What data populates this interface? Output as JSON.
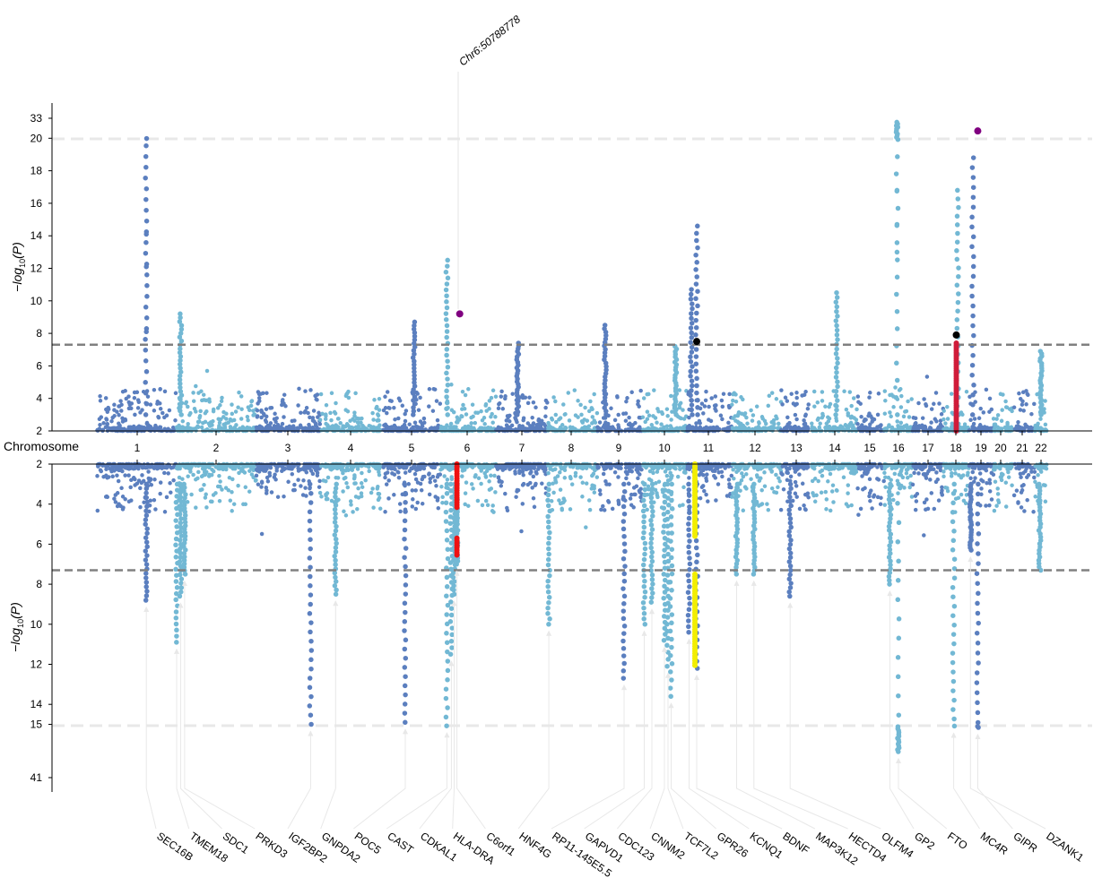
{
  "chart_data": {
    "type": "scatter",
    "subtype": "miami-plot",
    "xlabel": "Chromosome",
    "chromosomes": [
      "1",
      "2",
      "3",
      "4",
      "5",
      "6",
      "7",
      "8",
      "9",
      "10",
      "11",
      "12",
      "13",
      "14",
      "15",
      "16",
      "17",
      "18",
      "19",
      "20",
      "21",
      "22"
    ],
    "colors": {
      "dark": "#5b7fbf",
      "light": "#72b8d4",
      "threshold": "#808080",
      "break": "#e8e8e8"
    },
    "significance_threshold": 7.3,
    "top": {
      "ylabel": "-log10(P)",
      "tick_labels": [
        "2",
        "4",
        "6",
        "8",
        "10",
        "12",
        "14",
        "16",
        "18",
        "20",
        "33"
      ],
      "axis_break": {
        "label_below": "20",
        "label_above": "33"
      },
      "annotation": "Chr6:50788778",
      "peaks": [
        {
          "chr": "1",
          "pos": 0.62,
          "max": 20.2,
          "extra": [
            14.1,
            12.1,
            8.1
          ]
        },
        {
          "chr": "2",
          "pos": 0.05,
          "max": 9.2
        },
        {
          "chr": "5",
          "pos": 0.55,
          "max": 8.7
        },
        {
          "chr": "6",
          "pos": 0.12,
          "max": 12.5
        },
        {
          "chr": "7",
          "pos": 0.42,
          "max": 7.4
        },
        {
          "chr": "9",
          "pos": 0.18,
          "max": 8.5
        },
        {
          "chr": "10",
          "pos": 0.75,
          "max": 7.2
        },
        {
          "chr": "11",
          "pos": 0.1,
          "max": 10.7
        },
        {
          "chr": "11",
          "pos": 0.22,
          "max": 14.6
        },
        {
          "chr": "14",
          "pos": 0.55,
          "max": 10.5
        },
        {
          "chr": "16",
          "pos": 0.45,
          "max": 30.5,
          "extra": [
            16.8,
            14.7,
            13.0
          ]
        },
        {
          "chr": "18",
          "pos": 0.55,
          "max": 16.8
        },
        {
          "chr": "19",
          "pos": 0.15,
          "max": 18.8
        },
        {
          "chr": "22",
          "pos": 0.5,
          "max": 6.9
        }
      ],
      "highlights": [
        {
          "chr": "6",
          "pos": 0.35,
          "p": 9.2,
          "color": "#800080"
        },
        {
          "chr": "11",
          "pos": 0.22,
          "p": 7.5,
          "color": "#000000"
        },
        {
          "chr": "18",
          "pos": 0.5,
          "p": 7.9,
          "color": "#000000"
        },
        {
          "chr": "19",
          "pos": 0.35,
          "p": 25.0,
          "color": "#800080"
        }
      ],
      "highlight_columns": [
        {
          "chr": "18",
          "pos": 0.5,
          "from": 2,
          "to": 7.4,
          "color": "#d01c3a"
        }
      ]
    },
    "bottom": {
      "ylabel": "-log10(P)",
      "tick_labels": [
        "2",
        "4",
        "6",
        "8",
        "10",
        "12",
        "14",
        "15",
        "41"
      ],
      "axis_break": {
        "label_below": "15",
        "label_above": "41"
      },
      "peaks": [
        {
          "chr": "1",
          "pos": 0.62,
          "max": 8.8,
          "gene": "SEC16B"
        },
        {
          "chr": "2",
          "pos": 0.0,
          "max": 10.9,
          "gene": "TMEM18"
        },
        {
          "chr": "2",
          "pos": 0.05,
          "max": 8.6,
          "gene": "SDC1"
        },
        {
          "chr": "2",
          "pos": 0.1,
          "max": 7.5,
          "gene": "PRKD3"
        },
        {
          "chr": "3",
          "pos": 0.85,
          "max": 15.0,
          "gene": "IGF2BP2"
        },
        {
          "chr": "4",
          "pos": 0.25,
          "max": 8.5,
          "gene": "GNPDA2"
        },
        {
          "chr": "5",
          "pos": 0.4,
          "max": 14.9,
          "gene": "POC5"
        },
        {
          "chr": "6",
          "pos": 0.12,
          "max": 15.1,
          "gene": "CAST"
        },
        {
          "chr": "6",
          "pos": 0.2,
          "max": 11.5,
          "gene": "CDKAL1"
        },
        {
          "chr": "6",
          "pos": 0.25,
          "max": 8.5,
          "gene": "HLA-DRA"
        },
        {
          "chr": "6",
          "pos": 0.3,
          "max": 7.0,
          "gene": "C6orf1"
        },
        {
          "chr": "8",
          "pos": 0.02,
          "max": 10.0,
          "gene": "HNF4G"
        },
        {
          "chr": "9",
          "pos": 0.6,
          "max": 12.7,
          "gene": "RP11-145E5.5"
        },
        {
          "chr": "10",
          "pos": 0.05,
          "max": 10.0,
          "gene": "GAPVD1"
        },
        {
          "chr": "10",
          "pos": 0.22,
          "max": 8.9,
          "gene": "CDC123"
        },
        {
          "chr": "10",
          "pos": 0.5,
          "max": 10.8,
          "gene": "CNNM2"
        },
        {
          "chr": "10",
          "pos": 0.58,
          "max": 12.1,
          "gene": "TCF7L2"
        },
        {
          "chr": "10",
          "pos": 0.65,
          "max": 13.6,
          "gene": "GPR26"
        },
        {
          "chr": "11",
          "pos": 0.05,
          "max": 10.4,
          "gene": "KCNQ1"
        },
        {
          "chr": "11",
          "pos": 0.22,
          "max": 12.2,
          "gene": "BDNF"
        },
        {
          "chr": "12",
          "pos": 0.1,
          "max": 7.5,
          "gene": "MAP3K12"
        },
        {
          "chr": "12",
          "pos": 0.45,
          "max": 7.5,
          "gene": "HECTD4"
        },
        {
          "chr": "13",
          "pos": 0.3,
          "max": 8.6,
          "gene": "OLFM4"
        },
        {
          "chr": "16",
          "pos": 0.2,
          "max": 8.0,
          "gene": "GP2"
        },
        {
          "chr": "16",
          "pos": 0.5,
          "max": 28.0,
          "gene": "FTO"
        },
        {
          "chr": "18",
          "pos": 0.4,
          "max": 15.2,
          "gene": "MC4R"
        },
        {
          "chr": "19",
          "pos": 0.35,
          "max": 15.9,
          "gene": "GIPR"
        },
        {
          "chr": "19",
          "pos": 0.05,
          "max": 6.3,
          "gene": "DZANK1"
        },
        {
          "chr": "22",
          "pos": 0.4,
          "max": 7.3
        }
      ],
      "highlight_columns": [
        {
          "chr": "6",
          "pos": 0.3,
          "from": 2,
          "to": 4.2,
          "color": "#ee1111"
        },
        {
          "chr": "6",
          "pos": 0.3,
          "from": 5.7,
          "to": 6.6,
          "color": "#ee1111"
        },
        {
          "chr": "11",
          "pos": 0.18,
          "from": 2,
          "to": 5.7,
          "color": "#f2ee00"
        },
        {
          "chr": "11",
          "pos": 0.18,
          "from": 7.5,
          "to": 12.1,
          "color": "#f2ee00"
        }
      ]
    }
  }
}
